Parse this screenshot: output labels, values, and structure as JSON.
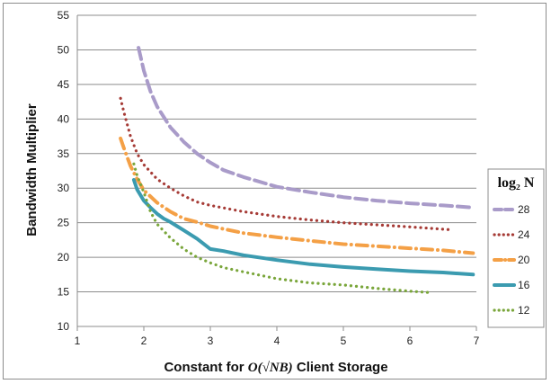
{
  "chart_data": {
    "type": "line",
    "xlabel": {
      "prefix": "Constant for ",
      "math": "O(√NB)",
      "suffix": " Client Storage"
    },
    "ylabel": "Bandwidth Multiplier",
    "xlim": [
      1,
      7
    ],
    "ylim": [
      10,
      55
    ],
    "xticks": [
      "1",
      "2",
      "3",
      "4",
      "5",
      "6",
      "7"
    ],
    "yticks": [
      "10",
      "15",
      "20",
      "25",
      "30",
      "35",
      "40",
      "45",
      "50",
      "55"
    ],
    "grid": "horizontal",
    "legend": {
      "title": "log₂ N",
      "placement": "right"
    },
    "series": [
      {
        "name": "28",
        "color": "#a99bc9",
        "style": "dashed",
        "x": [
          1.92,
          2.0,
          2.1,
          2.2,
          2.4,
          2.6,
          2.8,
          3.0,
          3.2,
          3.5,
          4.0,
          4.5,
          5.0,
          5.5,
          6.0,
          6.5,
          6.95
        ],
        "y": [
          50.3,
          47.0,
          44.0,
          41.8,
          38.8,
          36.7,
          35.0,
          33.7,
          32.6,
          31.6,
          30.2,
          29.4,
          28.7,
          28.2,
          27.8,
          27.5,
          27.2
        ]
      },
      {
        "name": "24",
        "color": "#a63b36",
        "style": "dotted",
        "x": [
          1.65,
          1.7,
          1.8,
          1.9,
          2.0,
          2.2,
          2.4,
          2.6,
          2.8,
          3.0,
          3.5,
          4.0,
          4.5,
          5.0,
          5.5,
          6.0,
          6.6
        ],
        "y": [
          43.0,
          41.0,
          37.5,
          35.0,
          33.4,
          31.3,
          30.0,
          28.9,
          28.0,
          27.5,
          26.6,
          25.9,
          25.4,
          25.0,
          24.7,
          24.4,
          24.0
        ]
      },
      {
        "name": "20",
        "color": "#f4a046",
        "style": "dashdot",
        "x": [
          1.65,
          1.7,
          1.8,
          1.9,
          2.0,
          2.2,
          2.4,
          2.6,
          2.8,
          3.0,
          3.5,
          4.0,
          4.5,
          5.0,
          5.5,
          6.0,
          6.5,
          6.95
        ],
        "y": [
          37.2,
          35.8,
          33.2,
          31.3,
          29.7,
          27.9,
          26.6,
          25.6,
          25.1,
          24.5,
          23.5,
          22.9,
          22.4,
          21.9,
          21.6,
          21.3,
          21.0,
          20.6
        ]
      },
      {
        "name": "16",
        "color": "#3b9bb0",
        "style": "solid",
        "x": [
          1.85,
          1.9,
          2.0,
          2.1,
          2.2,
          2.3,
          2.4,
          2.5,
          2.6,
          2.8,
          3.0,
          3.2,
          3.5,
          4.0,
          4.5,
          5.0,
          5.5,
          6.0,
          6.5,
          6.95
        ],
        "y": [
          31.2,
          29.8,
          28.2,
          27.2,
          26.3,
          25.6,
          25.1,
          24.5,
          23.9,
          22.7,
          21.2,
          20.9,
          20.3,
          19.6,
          19.0,
          18.6,
          18.3,
          18.0,
          17.8,
          17.5
        ]
      },
      {
        "name": "12",
        "color": "#7aa63b",
        "style": "dotted",
        "x": [
          1.85,
          1.9,
          2.0,
          2.1,
          2.2,
          2.4,
          2.6,
          2.8,
          3.0,
          3.2,
          3.5,
          4.0,
          4.5,
          5.0,
          5.5,
          6.0,
          6.3
        ],
        "y": [
          33.5,
          31.8,
          29.4,
          26.6,
          24.8,
          22.8,
          21.2,
          20.0,
          19.2,
          18.5,
          17.9,
          16.9,
          16.3,
          16.0,
          15.5,
          15.1,
          14.9
        ]
      }
    ]
  }
}
